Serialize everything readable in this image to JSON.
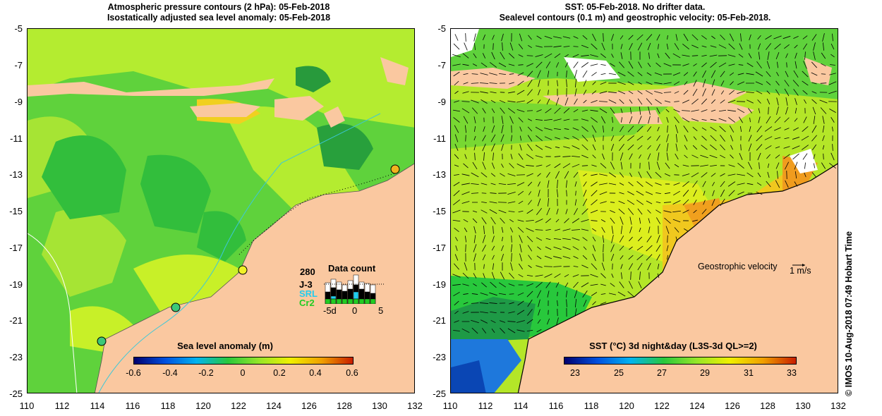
{
  "left_panel": {
    "title_line1": "Atmospheric pressure contours (2 hPa): 05-Feb-2018",
    "title_line2": "Isostatically adjusted sea level anomaly: 05-Feb-2018",
    "colorbar": {
      "title": "Sea level anomaly (m)",
      "ticks": [
        "-0.6",
        "-0.4",
        "-0.2",
        "0",
        "0.2",
        "0.4",
        "0.6"
      ]
    },
    "data_count": {
      "title": "Data count",
      "max_label": "280",
      "satellites": [
        "J-3",
        "SRL",
        "Cr2"
      ],
      "satellite_colors": [
        "#000000",
        "#22ccee",
        "#22cc22"
      ],
      "x_labels": [
        "-5d",
        "0",
        "5"
      ]
    }
  },
  "right_panel": {
    "title_line1": "SST: 05-Feb-2018. No drifter data.",
    "title_line2": "Sealevel contours (0.1 m) and geostrophic velocity: 05-Feb-2018.",
    "velocity_label": "Geostrophic velocity",
    "velocity_scale": "1 m/s",
    "colorbar": {
      "title": "SST (°C) 3d night&day (L3S-3d QL>=2)",
      "ticks": [
        "23",
        "25",
        "27",
        "29",
        "31",
        "33"
      ]
    }
  },
  "axes": {
    "y_ticks": [
      "-5",
      "-7",
      "-9",
      "-11",
      "-13",
      "-15",
      "-17",
      "-19",
      "-21",
      "-23",
      "-25"
    ],
    "x_ticks": [
      "110",
      "112",
      "114",
      "116",
      "118",
      "120",
      "122",
      "124",
      "126",
      "128",
      "130",
      "132"
    ]
  },
  "credit": "© IMOS 10-Aug-2018 07:49 Hobart Time",
  "colors": {
    "land": "#fac8a0",
    "ocean_green": "#5fd23c",
    "ocean_yellow": "#c8f028",
    "ocean_dark_green": "#28b43c",
    "ocean_blue": "#1e78dc",
    "sst_orange": "#f0b41e"
  }
}
